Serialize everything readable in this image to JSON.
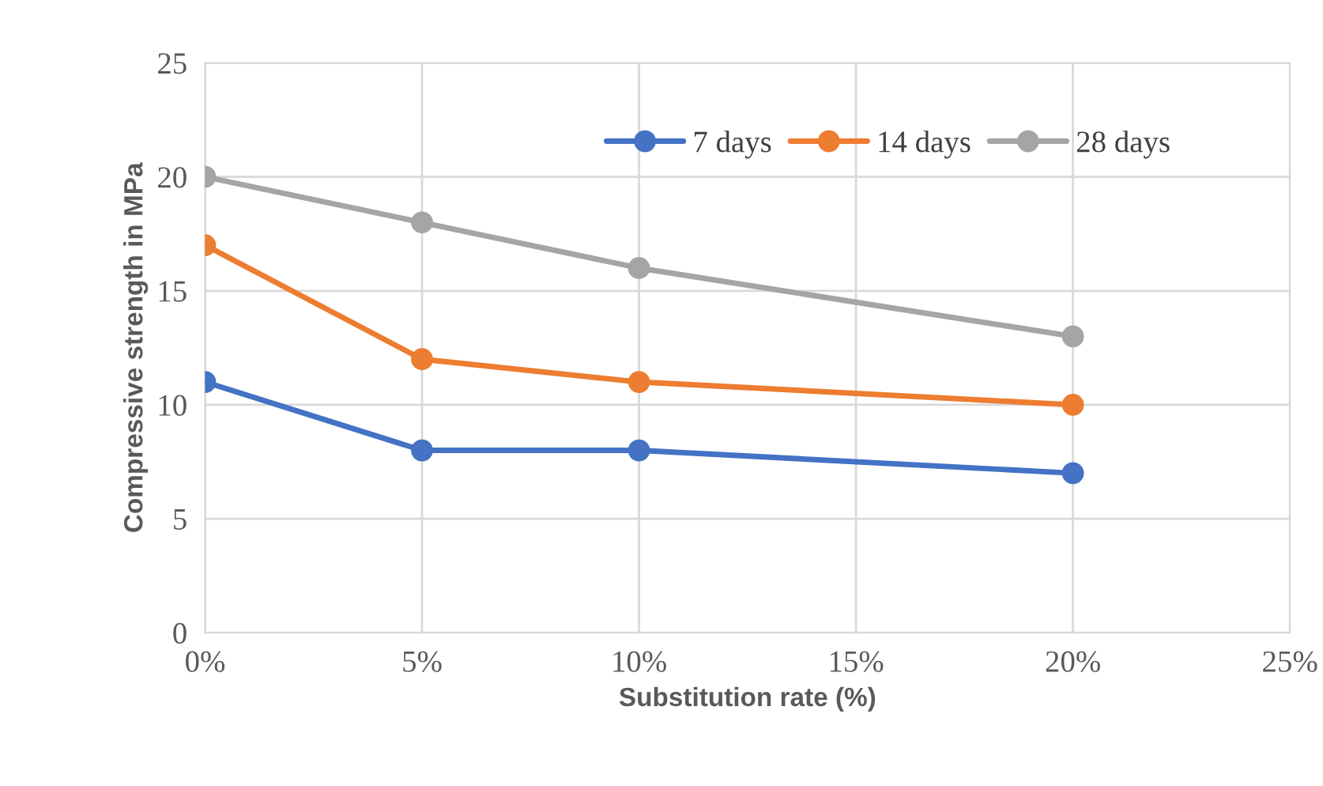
{
  "chart_data": {
    "type": "line",
    "xlabel": "Substitution rate (%)",
    "ylabel": "Compressive strength in MPa",
    "x": [
      0,
      5,
      10,
      20
    ],
    "series": [
      {
        "name": "7 days",
        "color": "#4472c4",
        "values": [
          11,
          8,
          8,
          7
        ]
      },
      {
        "name": "14 days",
        "color": "#ed7d31",
        "values": [
          17,
          12,
          11,
          10
        ]
      },
      {
        "name": "28 days",
        "color": "#a5a5a5",
        "values": [
          20,
          18,
          16,
          13
        ]
      }
    ],
    "xlim": [
      0,
      25
    ],
    "xticks": [
      {
        "value": 0,
        "label": "0%"
      },
      {
        "value": 5,
        "label": "5%"
      },
      {
        "value": 10,
        "label": "10%"
      },
      {
        "value": 15,
        "label": "15%"
      },
      {
        "value": 20,
        "label": "20%"
      },
      {
        "value": 25,
        "label": "25%"
      }
    ],
    "ylim": [
      0,
      25
    ],
    "yticks": [
      0,
      5,
      10,
      15,
      20,
      25
    ],
    "grid": true,
    "legend": "top",
    "marker": "circle",
    "line_style": "solid"
  }
}
